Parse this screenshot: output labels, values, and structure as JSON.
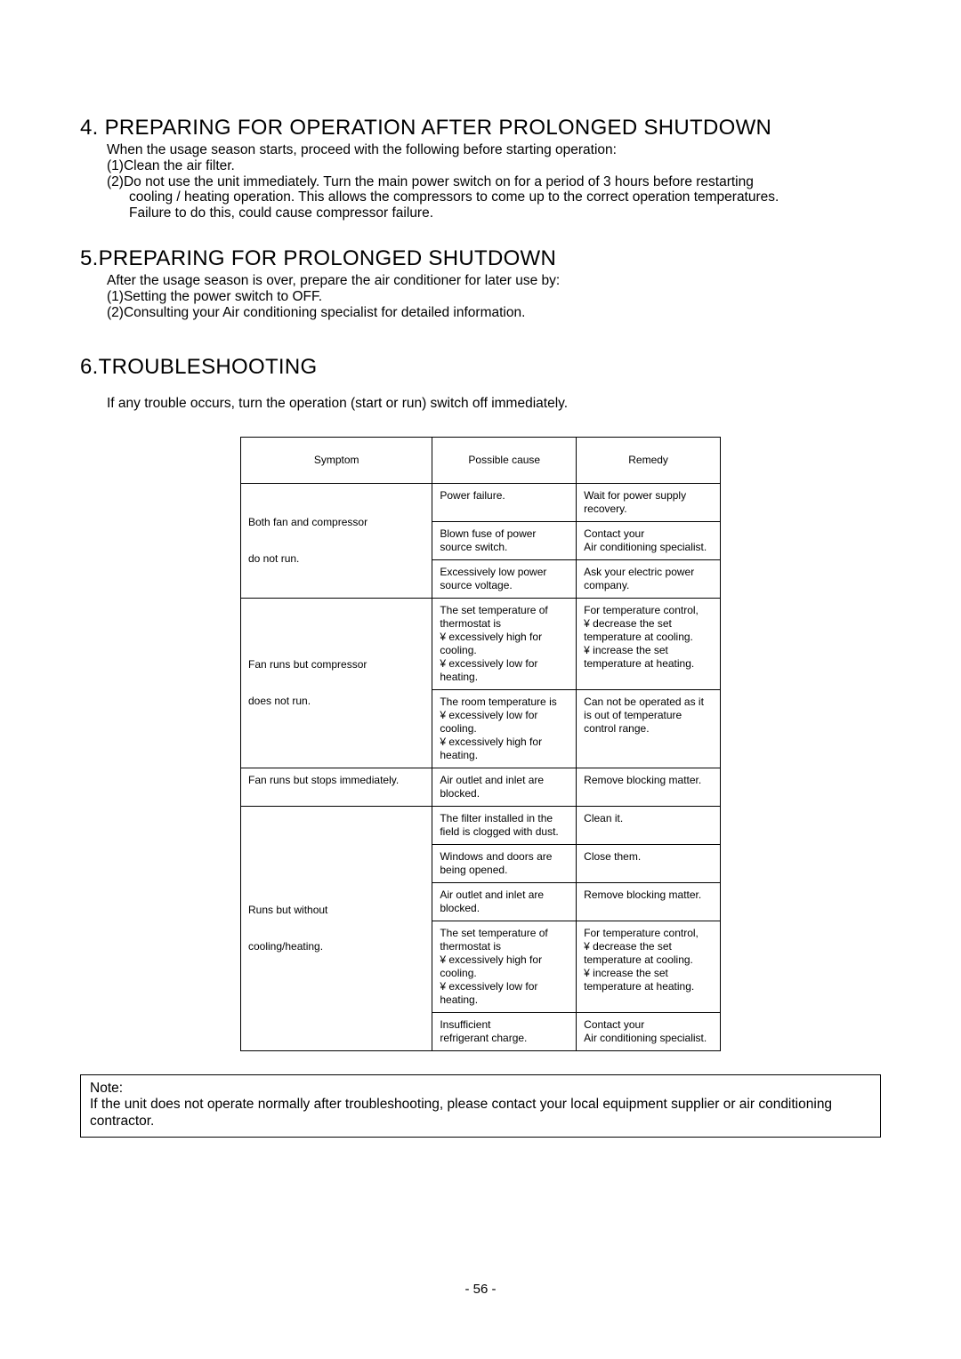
{
  "section4": {
    "heading": "4. PREPARING FOR OPERATION AFTER PROLONGED SHUTDOWN",
    "intro": "When the usage season starts, proceed with the following before starting operation:",
    "item1": "(1)Clean the air filter.",
    "item2_l1": "(2)Do not use the unit immediately. Turn the main power switch on for a period of 3 hours before restarting",
    "item2_l2": "cooling / heating operation. This allows the compressors to come up to the correct operation temperatures.",
    "item2_l3": "Failure to do this,  could cause compressor failure."
  },
  "section5": {
    "heading": "5.PREPARING FOR PROLONGED SHUTDOWN",
    "intro": "After the usage season is over, prepare the air conditioner for later use by:",
    "item1": "(1)Setting the power switch to OFF.",
    "item2": "(2)Consulting your Air conditioning specialist for detailed information."
  },
  "section6": {
    "heading": "6.TROUBLESHOOTING",
    "intro": "If any trouble occurs, turn the operation (start or run) switch off immediately."
  },
  "table": {
    "columns": [
      "Symptom",
      "Possible cause",
      "Remedy"
    ],
    "rows": [
      {
        "symptom": "Both fan and compressor\n\ndo not run.",
        "symptom_rowspan": 3,
        "cause": "Power failure.",
        "remedy": "Wait for power supply recovery."
      },
      {
        "cause": "Blown fuse of power source switch.",
        "remedy": "Contact your\nAir conditioning specialist."
      },
      {
        "cause": "Excessively low power source voltage.",
        "remedy": "Ask your electric power company."
      },
      {
        "symptom": "Fan runs but compressor\n\ndoes not run.",
        "symptom_rowspan": 2,
        "cause": "The set temperature of thermostat is\n¥ excessively high for\n   cooling.\n¥ excessively low for\n   heating.",
        "remedy": "For temperature control,\n¥ decrease the set\n   temperature at cooling.\n¥ increase the set\n   temperature at heating."
      },
      {
        "cause": "The room temperature is\n¥ excessively low for\n   cooling.\n¥ excessively high for\n   heating.",
        "remedy": "Can not be operated as it is out of temperature control range."
      },
      {
        "symptom": "Fan runs but stops immediately.",
        "symptom_rowspan": 1,
        "symptom_valign": "top",
        "cause": "Air outlet and inlet are blocked.",
        "remedy": "Remove blocking matter."
      },
      {
        "symptom": "Runs but without\n\ncooling/heating.",
        "symptom_rowspan": 5,
        "cause": "The filter installed in the field is clogged with dust.",
        "remedy": "Clean it."
      },
      {
        "cause": "Windows and doors are being opened.",
        "remedy": "Close them."
      },
      {
        "cause": "Air outlet and inlet are blocked.",
        "remedy": "Remove blocking matter."
      },
      {
        "cause": "The set temperature of thermostat is\n¥ excessively high for\n   cooling.\n¥ excessively low for\n   heating.",
        "remedy": "For temperature control,\n¥ decrease the set\n   temperature at cooling.\n¥ increase the set\n   temperature at heating."
      },
      {
        "cause": "Insufficient\nrefrigerant charge.",
        "remedy": "Contact your\nAir conditioning specialist."
      }
    ]
  },
  "note": {
    "label": "Note:",
    "body": "If the unit does not operate normally after troubleshooting, please contact your local equipment supplier or air conditioning contractor."
  },
  "page_number": "- 56 -"
}
